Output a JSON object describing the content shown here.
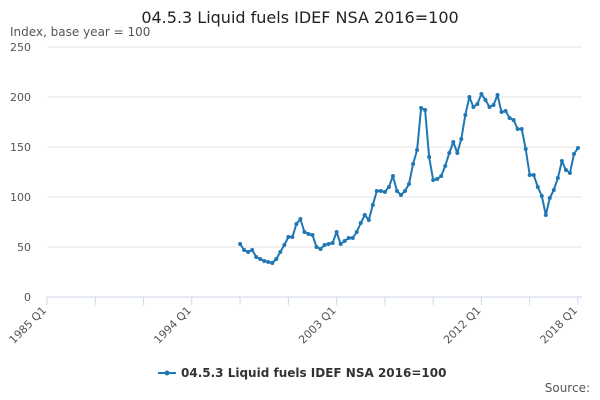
{
  "page": {
    "source_label": "Source:"
  },
  "chart_data": {
    "type": "line",
    "title": "04.5.3 Liquid fuels IDEF NSA 2016=100",
    "ylabel": "Index, base year = 100",
    "xlabel": "",
    "x_ticks": [
      "1985 Q1",
      "1994 Q1",
      "2003 Q1",
      "2012 Q1",
      "2018 Q1"
    ],
    "x_tick_years": [
      1985,
      1994,
      2003,
      2012,
      2018
    ],
    "xlim": [
      1985,
      2018.25
    ],
    "y_ticks": [
      0,
      50,
      100,
      150,
      200,
      250
    ],
    "ylim": [
      0,
      250
    ],
    "grid": "horizontal",
    "legend_position": "bottom",
    "line_color": "#1f77b4",
    "series": [
      {
        "name": "04.5.3 Liquid fuels IDEF NSA 2016=100",
        "x": [
          1997.0,
          1997.25,
          1997.5,
          1997.75,
          1998.0,
          1998.25,
          1998.5,
          1998.75,
          1999.0,
          1999.25,
          1999.5,
          1999.75,
          2000.0,
          2000.25,
          2000.5,
          2000.75,
          2001.0,
          2001.25,
          2001.5,
          2001.75,
          2002.0,
          2002.25,
          2002.5,
          2002.75,
          2003.0,
          2003.25,
          2003.5,
          2003.75,
          2004.0,
          2004.25,
          2004.5,
          2004.75,
          2005.0,
          2005.25,
          2005.5,
          2005.75,
          2006.0,
          2006.25,
          2006.5,
          2006.75,
          2007.0,
          2007.25,
          2007.5,
          2007.75,
          2008.0,
          2008.25,
          2008.5,
          2008.75,
          2009.0,
          2009.25,
          2009.5,
          2009.75,
          2010.0,
          2010.25,
          2010.5,
          2010.75,
          2011.0,
          2011.25,
          2011.5,
          2011.75,
          2012.0,
          2012.25,
          2012.5,
          2012.75,
          2013.0,
          2013.25,
          2013.5,
          2013.75,
          2014.0,
          2014.25,
          2014.5,
          2014.75,
          2015.0,
          2015.25,
          2015.5,
          2015.75,
          2016.0,
          2016.25,
          2016.5,
          2016.75,
          2017.0,
          2017.25,
          2017.5,
          2017.75,
          2018.0
        ],
        "values": [
          53,
          47,
          45,
          47,
          40,
          38,
          36,
          35,
          34,
          38,
          45,
          52,
          60,
          60,
          73,
          78,
          65,
          63,
          62,
          50,
          48,
          52,
          53,
          54,
          65,
          53,
          56,
          59,
          59,
          65,
          74,
          82,
          77,
          92,
          106,
          106,
          105,
          110,
          121,
          106,
          102,
          106,
          113,
          133,
          147,
          189,
          187,
          140,
          117,
          118,
          121,
          131,
          144,
          155,
          144,
          158,
          182,
          200,
          190,
          193,
          203,
          197,
          190,
          192,
          202,
          185,
          186,
          179,
          177,
          168,
          168,
          148,
          122,
          122,
          110,
          101,
          82,
          99,
          107,
          119,
          136,
          127,
          124,
          143,
          149
        ]
      }
    ]
  }
}
